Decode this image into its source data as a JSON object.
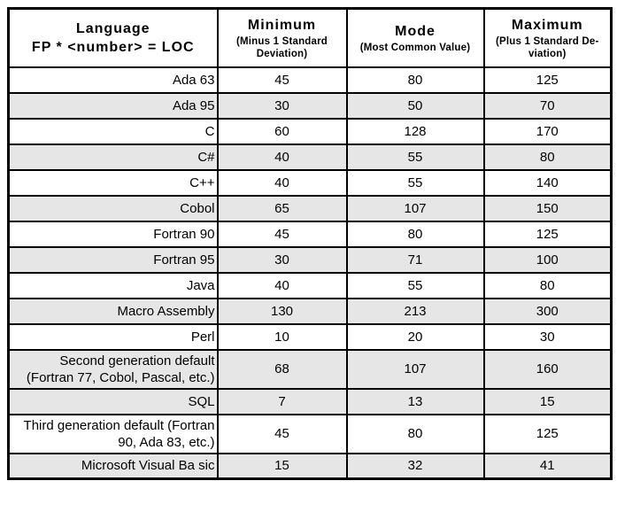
{
  "table": {
    "header": {
      "language_title": "Language",
      "language_subtitle": "FP * <number> = LOC",
      "columns": [
        {
          "label": "Minimum",
          "sublabel": "(Minus 1 Standard Deviation)"
        },
        {
          "label": "Mode",
          "sublabel": "(Most Common Value)"
        },
        {
          "label": "Maximum",
          "sublabel": "(Plus 1 Standard De-viation)"
        }
      ]
    },
    "rows": [
      {
        "language": "Ada 63",
        "minimum": "45",
        "mode": "80",
        "maximum": "125",
        "shaded": false
      },
      {
        "language": "Ada 95",
        "minimum": "30",
        "mode": "50",
        "maximum": "70",
        "shaded": true
      },
      {
        "language": "C",
        "minimum": "60",
        "mode": "128",
        "maximum": "170",
        "shaded": false
      },
      {
        "language": "C#",
        "minimum": "40",
        "mode": "55",
        "maximum": "80",
        "shaded": true
      },
      {
        "language": "C++",
        "minimum": "40",
        "mode": "55",
        "maximum": "140",
        "shaded": false
      },
      {
        "language": "Cobol",
        "minimum": "65",
        "mode": "107",
        "maximum": "150",
        "shaded": true
      },
      {
        "language": "Fortran 90",
        "minimum": "45",
        "mode": "80",
        "maximum": "125",
        "shaded": false
      },
      {
        "language": "Fortran 95",
        "minimum": "30",
        "mode": "71",
        "maximum": "100",
        "shaded": true
      },
      {
        "language": "Java",
        "minimum": "40",
        "mode": "55",
        "maximum": "80",
        "shaded": false
      },
      {
        "language": "Macro Assembly",
        "minimum": "130",
        "mode": "213",
        "maximum": "300",
        "shaded": true
      },
      {
        "language": "Perl",
        "minimum": "10",
        "mode": "20",
        "maximum": "30",
        "shaded": false
      },
      {
        "language": "Second generation default (Fortran 77, Cobol, Pascal, etc.)",
        "minimum": "68",
        "mode": "107",
        "maximum": "160",
        "shaded": true
      },
      {
        "language": "SQL",
        "minimum": "7",
        "mode": "13",
        "maximum": "15",
        "shaded": true
      },
      {
        "language": "Third generation default (Fortran 90, Ada 83, etc.)",
        "minimum": "45",
        "mode": "80",
        "maximum": "125",
        "shaded": false
      },
      {
        "language": "Microsoft Visual Ba sic",
        "minimum": "15",
        "mode": "32",
        "maximum": "41",
        "shaded": true
      }
    ]
  },
  "colors": {
    "shaded_row": "#e6e6e6",
    "border": "#000000",
    "background": "#ffffff",
    "text": "#000000"
  }
}
